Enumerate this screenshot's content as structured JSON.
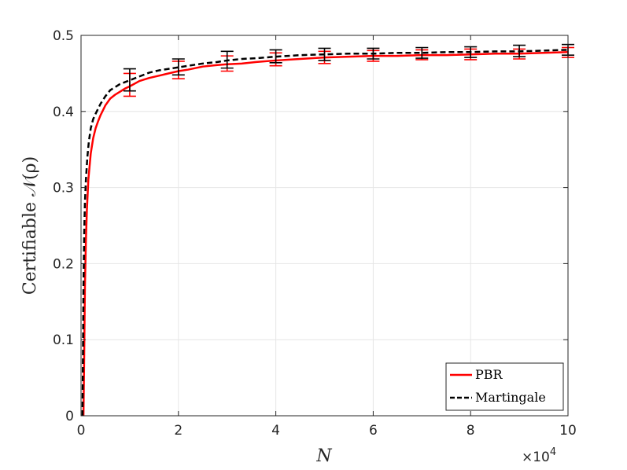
{
  "chart_data": {
    "type": "line",
    "xlabel": "N",
    "ylabel": "Certifiable 𝒩(ρ)",
    "x_exponent_label": "×10",
    "x_exponent_power": "4",
    "xlim": [
      0,
      100000
    ],
    "ylim": [
      0,
      0.5
    ],
    "xticks": [
      0,
      20000,
      40000,
      60000,
      80000,
      100000
    ],
    "xtick_labels": [
      "0",
      "2",
      "4",
      "6",
      "8",
      "10"
    ],
    "yticks": [
      0,
      0.1,
      0.2,
      0.3,
      0.4,
      0.5
    ],
    "ytick_labels": [
      "0",
      "0.1",
      "0.2",
      "0.3",
      "0.4",
      "0.5"
    ],
    "grid": true,
    "legend_position": "bottom-right",
    "series": [
      {
        "name": "PBR",
        "color": "#ff0000",
        "style": "solid",
        "x": [
          500,
          650,
          800,
          1000,
          1200,
          1500,
          2000,
          2500,
          3000,
          3500,
          4000,
          5000,
          6000,
          7000,
          8000,
          9000,
          10000,
          12000,
          14000,
          16000,
          18000,
          20000,
          22000,
          25000,
          28000,
          30000,
          33000,
          36000,
          40000,
          45000,
          50000,
          55000,
          60000,
          65000,
          70000,
          75000,
          80000,
          85000,
          90000,
          95000,
          100000
        ],
        "y": [
          0.0,
          0.08,
          0.17,
          0.23,
          0.27,
          0.31,
          0.345,
          0.365,
          0.378,
          0.387,
          0.395,
          0.408,
          0.417,
          0.422,
          0.426,
          0.43,
          0.433,
          0.44,
          0.444,
          0.447,
          0.45,
          0.453,
          0.455,
          0.459,
          0.461,
          0.462,
          0.463,
          0.465,
          0.467,
          0.469,
          0.471,
          0.472,
          0.473,
          0.473,
          0.474,
          0.474,
          0.475,
          0.476,
          0.476,
          0.477,
          0.478
        ],
        "error_x": [
          10000,
          20000,
          30000,
          40000,
          50000,
          60000,
          70000,
          80000,
          90000,
          100000
        ],
        "error_y": [
          0.433,
          0.453,
          0.462,
          0.467,
          0.471,
          0.473,
          0.474,
          0.475,
          0.476,
          0.478
        ],
        "error_low": [
          0.42,
          0.443,
          0.453,
          0.46,
          0.463,
          0.466,
          0.468,
          0.468,
          0.469,
          0.471
        ],
        "error_high": [
          0.45,
          0.466,
          0.473,
          0.477,
          0.479,
          0.48,
          0.481,
          0.482,
          0.482,
          0.484
        ]
      },
      {
        "name": "Martingale",
        "color": "#000000",
        "style": "dashed",
        "x": [
          300,
          400,
          500,
          650,
          800,
          1000,
          1300,
          1600,
          2000,
          2500,
          3000,
          4000,
          5000,
          6000,
          7000,
          8000,
          10000,
          12000,
          14000,
          16000,
          18000,
          20000,
          22000,
          25000,
          28000,
          30000,
          33000,
          36000,
          40000,
          45000,
          50000,
          55000,
          60000,
          65000,
          70000,
          75000,
          80000,
          85000,
          90000,
          95000,
          100000
        ],
        "y": [
          0.0,
          0.08,
          0.17,
          0.24,
          0.28,
          0.31,
          0.34,
          0.36,
          0.378,
          0.39,
          0.397,
          0.41,
          0.42,
          0.428,
          0.432,
          0.436,
          0.441,
          0.446,
          0.451,
          0.454,
          0.456,
          0.458,
          0.46,
          0.463,
          0.465,
          0.467,
          0.469,
          0.47,
          0.472,
          0.474,
          0.475,
          0.476,
          0.476,
          0.477,
          0.477,
          0.478,
          0.478,
          0.479,
          0.479,
          0.48,
          0.481
        ],
        "error_x": [
          10000,
          20000,
          30000,
          40000,
          50000,
          60000,
          70000,
          80000,
          90000,
          100000
        ],
        "error_y": [
          0.441,
          0.458,
          0.467,
          0.472,
          0.475,
          0.476,
          0.477,
          0.478,
          0.479,
          0.481
        ],
        "error_low": [
          0.427,
          0.448,
          0.457,
          0.464,
          0.467,
          0.469,
          0.47,
          0.471,
          0.472,
          0.474
        ],
        "error_high": [
          0.456,
          0.469,
          0.479,
          0.481,
          0.483,
          0.483,
          0.484,
          0.485,
          0.487,
          0.488
        ]
      }
    ]
  }
}
